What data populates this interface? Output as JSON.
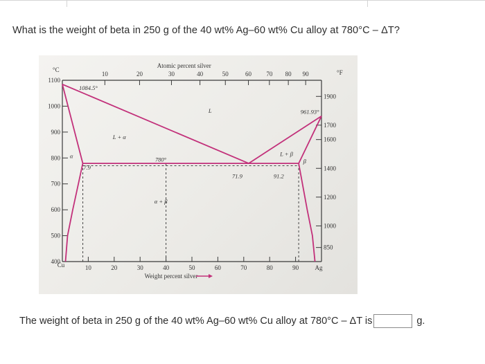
{
  "question": {
    "text": "What is the weight of beta in 250 g of the 40 wt% Ag–60 wt% Cu alloy at 780°C – ΔT?"
  },
  "answer": {
    "prompt": "The weight of beta in 250 g of the 40 wt% Ag–60 wt% Cu alloy at 780°C – ΔT is",
    "value": "",
    "unit": "g."
  },
  "colors": {
    "liquidus": "#c2307a",
    "axis": "#3a3a3a",
    "grid_dash": "#444444"
  },
  "chart_data": {
    "type": "line",
    "top_axis_label": "Atomic percent silver",
    "xlabel": "Weight percent silver",
    "left_unit": "°C",
    "right_unit": "°F",
    "xlim": [
      0,
      100
    ],
    "ylim": [
      400,
      1100
    ],
    "x_ticks": [
      10,
      20,
      30,
      40,
      50,
      60,
      70,
      80,
      90
    ],
    "x_end_labels": [
      "Cu",
      "Ag"
    ],
    "y_ticks": [
      1100,
      1000,
      900,
      800,
      700,
      600,
      500,
      400
    ],
    "top_ticks": [
      {
        "label": "10",
        "wt": 16.4
      },
      {
        "label": "20",
        "wt": 29.8
      },
      {
        "label": "30",
        "wt": 42.1
      },
      {
        "label": "40",
        "wt": 53.1
      },
      {
        "label": "50",
        "wt": 62.9
      },
      {
        "label": "60",
        "wt": 71.8
      },
      {
        "label": "70",
        "wt": 79.9
      },
      {
        "label": "80",
        "wt": 87.2
      },
      {
        "label": "90",
        "wt": 93.9
      }
    ],
    "right_ticks_F": [
      {
        "label": "1900",
        "t": 1037.8
      },
      {
        "label": "1700",
        "t": 926.7
      },
      {
        "label": "1600",
        "t": 871.1
      },
      {
        "label": "1400",
        "t": 760.0
      },
      {
        "label": "1200",
        "t": 648.9
      },
      {
        "label": "1000",
        "t": 537.8
      },
      {
        "label": "850",
        "t": 454.4
      }
    ],
    "series": [
      {
        "points": [
          [
            0,
            1084.5
          ],
          [
            71.9,
            779
          ]
        ]
      },
      {
        "points": [
          [
            71.9,
            779
          ],
          [
            100,
            961.9
          ]
        ]
      },
      {
        "points": [
          [
            0,
            1084.5
          ],
          [
            7.9,
            779
          ]
        ]
      },
      {
        "points": [
          [
            91.2,
            779
          ],
          [
            100,
            961.9
          ]
        ]
      },
      {
        "points": [
          [
            7.9,
            779
          ],
          [
            4,
            600
          ],
          [
            2,
            500
          ],
          [
            1.2,
            400
          ]
        ]
      },
      {
        "points": [
          [
            91.2,
            779
          ],
          [
            94.5,
            600
          ],
          [
            96.5,
            500
          ],
          [
            97.5,
            400
          ]
        ]
      },
      {
        "points": [
          [
            7.9,
            779
          ],
          [
            91.2,
            779
          ]
        ]
      }
    ],
    "dashed_verticals": [
      {
        "x": 7.9,
        "from": 400,
        "to": 779
      },
      {
        "x": 40,
        "from": 400,
        "to": 779
      },
      {
        "x": 91.2,
        "from": 400,
        "to": 779
      }
    ],
    "dashed_horizontal": {
      "t": 770,
      "from": 7.9,
      "to": 91.2
    },
    "annotations": [
      {
        "text": "1084.5°",
        "x": 10,
        "t": 1062
      },
      {
        "text": "961.93°",
        "x": 95.5,
        "t": 970
      },
      {
        "text": "L",
        "x": 57,
        "t": 975
      },
      {
        "text": "L + α",
        "x": 22,
        "t": 873
      },
      {
        "text": "L + β",
        "x": 86.5,
        "t": 808
      },
      {
        "text": "α",
        "x": 3.5,
        "t": 800
      },
      {
        "text": "β",
        "x": 93.5,
        "t": 780
      },
      {
        "text": "α + β",
        "x": 38,
        "t": 625
      },
      {
        "text": "780°",
        "x": 38,
        "t": 786
      },
      {
        "text": "7.9",
        "x": 9.5,
        "t": 755
      },
      {
        "text": "71.9",
        "x": 67.5,
        "t": 722
      },
      {
        "text": "91.2",
        "x": 83.5,
        "t": 722
      }
    ]
  }
}
